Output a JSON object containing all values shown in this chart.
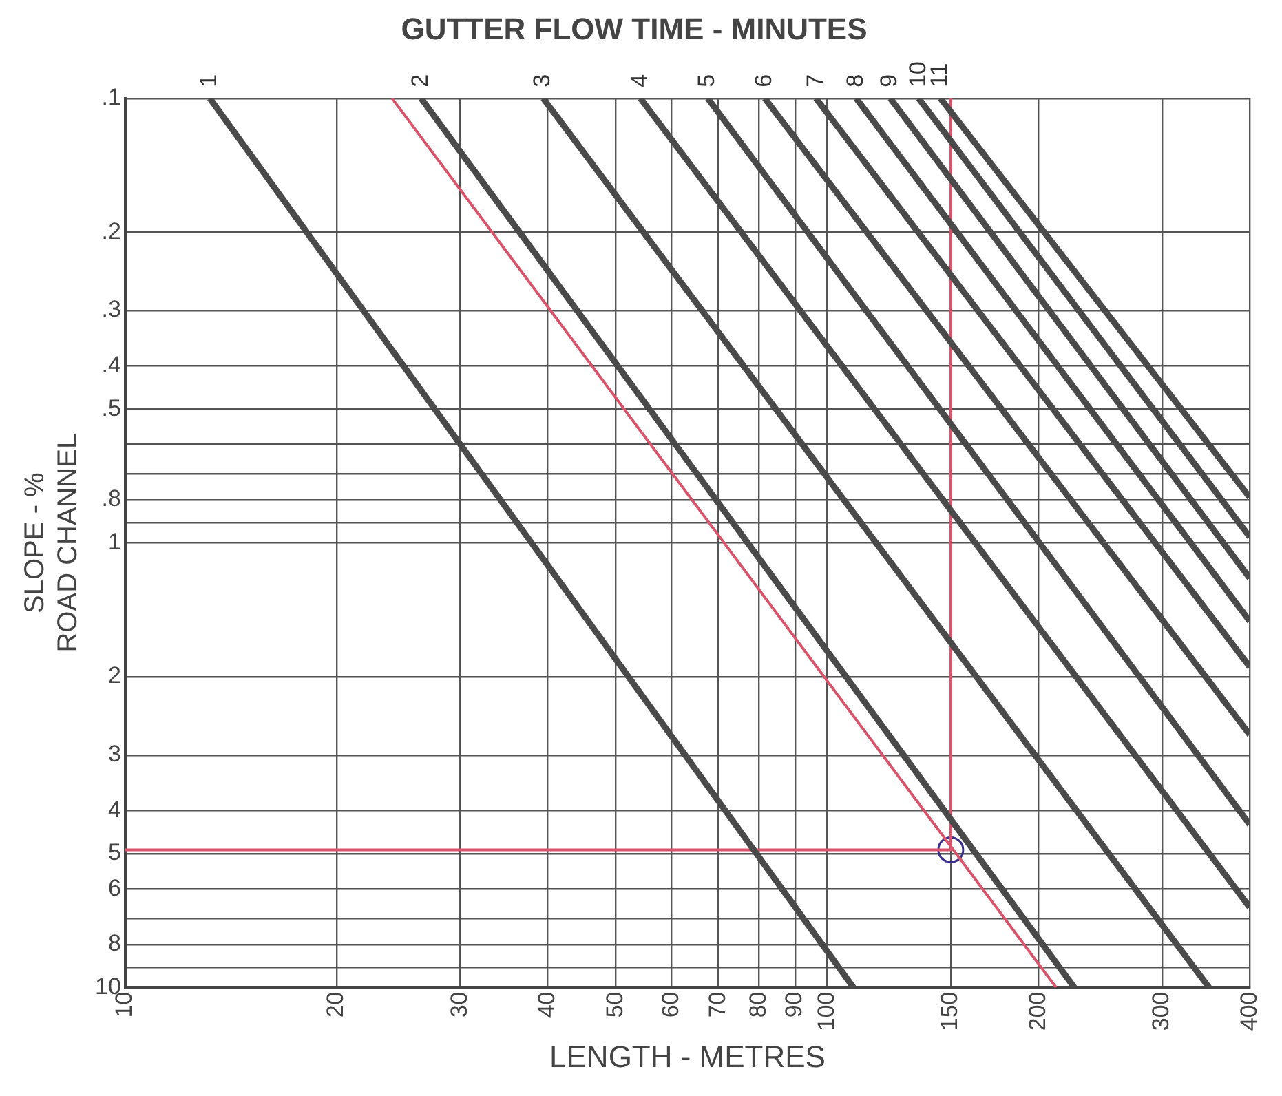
{
  "chart_data": {
    "type": "line",
    "title": "GUTTER FLOW TIME - MINUTES",
    "xlabel": "LENGTH - METRES",
    "ylabel": "SLOPE - %\nROAD CHANNEL",
    "log": "xy",
    "grid": true,
    "marker": "none",
    "xlim": [
      10,
      400
    ],
    "xticks": [
      10,
      20,
      30,
      40,
      50,
      60,
      70,
      80,
      90,
      100,
      150,
      200,
      300,
      400
    ],
    "ylim": [
      10,
      0.1
    ],
    "yticks": [
      {
        "value": 0.1,
        "label": ".1"
      },
      {
        "value": 0.2,
        "label": ".2"
      },
      {
        "value": 0.3,
        "label": ".3"
      },
      {
        "value": 0.4,
        "label": ".4"
      },
      {
        "value": 0.5,
        "label": ".5"
      },
      {
        "value": 0.6,
        "label": null
      },
      {
        "value": 0.7,
        "label": null
      },
      {
        "value": 0.8,
        "label": ".8"
      },
      {
        "value": 0.9,
        "label": null
      },
      1,
      2,
      3,
      4,
      5,
      6,
      {
        "value": 7,
        "label": null
      },
      8,
      {
        "value": 9,
        "label": null
      },
      10
    ],
    "series": [
      {
        "name": "1",
        "color": "#4a4a4a",
        "x": [
          13.2,
          109
        ],
        "values": [
          0.1,
          10
        ]
      },
      {
        "name": "2",
        "color": "#4a4a4a",
        "x": [
          26.4,
          225
        ],
        "values": [
          0.1,
          10
        ]
      },
      {
        "name": "3",
        "color": "#4a4a4a",
        "x": [
          39.4,
          350
        ],
        "values": [
          0.1,
          10
        ]
      },
      {
        "name": "4",
        "color": "#4a4a4a",
        "x": [
          54.2,
          400
        ],
        "values": [
          0.1,
          6.6
        ]
      },
      {
        "name": "5",
        "color": "#4a4a4a",
        "x": [
          67.6,
          400
        ],
        "values": [
          0.1,
          4.3
        ]
      },
      {
        "name": "6",
        "color": "#4a4a4a",
        "x": [
          81.5,
          400
        ],
        "values": [
          0.1,
          2.7
        ]
      },
      {
        "name": "7",
        "color": "#4a4a4a",
        "x": [
          96.4,
          400
        ],
        "values": [
          0.1,
          1.9
        ]
      },
      {
        "name": "8",
        "color": "#4a4a4a",
        "x": [
          110,
          400
        ],
        "values": [
          0.1,
          1.5
        ]
      },
      {
        "name": "9",
        "color": "#4a4a4a",
        "x": [
          123,
          400
        ],
        "values": [
          0.1,
          1.2
        ]
      },
      {
        "name": "10",
        "color": "#4a4a4a",
        "x": [
          135,
          400
        ],
        "values": [
          0.1,
          0.97
        ]
      },
      {
        "name": "11",
        "color": "#4a4a4a",
        "x": [
          145,
          400
        ],
        "values": [
          0.1,
          0.79
        ]
      },
      {
        "color": "#d9546a",
        "x": [
          24,
          212
        ],
        "values": [
          0.1,
          10
        ]
      },
      {
        "color": "#d9546a",
        "x": [
          10,
          150,
          150
        ],
        "values": [
          4.9,
          4.9,
          0.1
        ]
      },
      {
        "type": "scatter",
        "marker": "circle",
        "color": "#3a2f8f",
        "x": [
          150
        ],
        "values": [
          4.9
        ]
      }
    ]
  }
}
